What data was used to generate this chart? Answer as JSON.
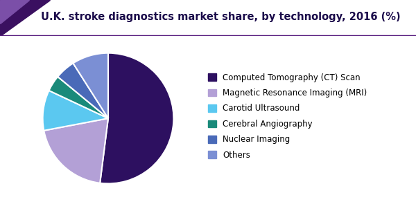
{
  "title": "U.K. stroke diagnostics market share, by technology, 2016 (%)",
  "title_color": "#1a0a4a",
  "title_fontsize": 10.5,
  "slices": [
    {
      "label": "Computed Tomography (CT) Scan",
      "value": 52,
      "color": "#2d1060"
    },
    {
      "label": "Magnetic Resonance Imaging (MRI)",
      "value": 20,
      "color": "#b3a0d6"
    },
    {
      "label": "Carotid Ultrasound",
      "value": 10,
      "color": "#5bc8f0"
    },
    {
      "label": "Cerebral Angiography",
      "value": 4,
      "color": "#1a8a7a"
    },
    {
      "label": "Nuclear Imaging",
      "value": 5,
      "color": "#4a6ab8"
    },
    {
      "label": "Others",
      "value": 9,
      "color": "#7b8fd4"
    }
  ],
  "background_color": "#ffffff",
  "wedge_edge_color": "#ffffff",
  "wedge_linewidth": 1.5,
  "startangle": 90,
  "legend_fontsize": 8.5,
  "header_line_color": "#5a2080",
  "header_bg": "#ffffff",
  "tri_color1": "#3a1060",
  "tri_color2": "#7b4fa8",
  "legend_text_color": "#000000"
}
